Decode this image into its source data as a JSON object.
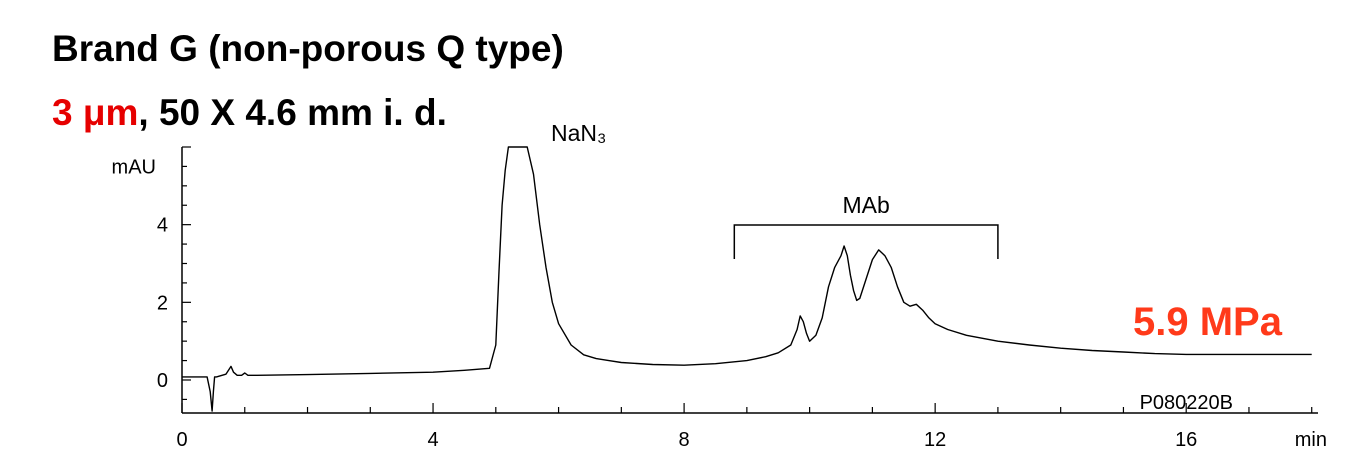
{
  "title": {
    "line1": "Brand G (non-porous Q type)",
    "line2_highlight": "3 μm",
    "line2_rest": ", 50 X 4.6 mm i. d."
  },
  "pressure_label": "5.9 MPa",
  "colors": {
    "highlight": "#e60000",
    "pressure": "#ff3a1a",
    "trace": "#000000"
  },
  "chart_data": {
    "type": "line",
    "xlabel": "min",
    "ylabel": "mAU",
    "xlim": [
      0,
      18.1
    ],
    "ylim": [
      -0.85,
      6.0
    ],
    "xticks": [
      0,
      4,
      8,
      12,
      16
    ],
    "yticks": [
      0,
      2,
      4
    ],
    "grid": false,
    "series": [
      {
        "x": [
          0,
          0.4,
          0.45,
          0.48,
          0.5,
          0.52,
          0.55,
          0.7,
          0.78,
          0.82,
          0.88,
          0.95,
          1.0,
          1.05,
          1.2,
          2.0,
          3.0,
          4.0,
          4.5,
          4.9,
          5.0,
          5.05,
          5.1,
          5.15,
          5.2,
          5.25,
          5.3,
          5.4,
          5.5,
          5.6,
          5.7,
          5.8,
          5.9,
          6.0,
          6.2,
          6.4,
          6.6,
          6.8,
          7.0,
          7.5,
          8.0,
          8.5,
          9.0,
          9.3,
          9.5,
          9.7,
          9.8,
          9.85,
          9.9,
          9.95,
          10.0,
          10.1,
          10.2,
          10.3,
          10.4,
          10.5,
          10.55,
          10.6,
          10.65,
          10.7,
          10.75,
          10.8,
          10.9,
          11.0,
          11.1,
          11.2,
          11.3,
          11.4,
          11.5,
          11.6,
          11.7,
          11.8,
          11.9,
          12.0,
          12.2,
          12.5,
          13.0,
          13.5,
          14.0,
          14.5,
          15.0,
          15.5,
          16.0,
          17.0,
          18.0
        ],
        "y": [
          0.08,
          0.08,
          -0.3,
          -0.8,
          -0.3,
          0.08,
          0.08,
          0.15,
          0.35,
          0.2,
          0.12,
          0.12,
          0.18,
          0.12,
          0.12,
          0.14,
          0.17,
          0.2,
          0.25,
          0.3,
          0.9,
          2.8,
          4.5,
          5.4,
          6.0,
          6.0,
          6.0,
          6.0,
          6.0,
          5.3,
          4.0,
          2.9,
          2.0,
          1.45,
          0.9,
          0.65,
          0.55,
          0.5,
          0.45,
          0.4,
          0.38,
          0.42,
          0.5,
          0.6,
          0.7,
          0.9,
          1.3,
          1.65,
          1.5,
          1.2,
          1.0,
          1.15,
          1.6,
          2.4,
          2.9,
          3.2,
          3.45,
          3.2,
          2.7,
          2.3,
          2.05,
          2.1,
          2.6,
          3.1,
          3.35,
          3.2,
          2.9,
          2.4,
          2.0,
          1.9,
          1.95,
          1.8,
          1.6,
          1.45,
          1.3,
          1.15,
          1.0,
          0.9,
          0.82,
          0.76,
          0.72,
          0.68,
          0.66,
          0.66,
          0.66
        ]
      }
    ],
    "annotations": [
      {
        "text": "NaN₃"
      },
      {
        "text": "MAb",
        "bracket_x": [
          8.8,
          13.0
        ]
      }
    ],
    "footer_code": "P080220B"
  }
}
